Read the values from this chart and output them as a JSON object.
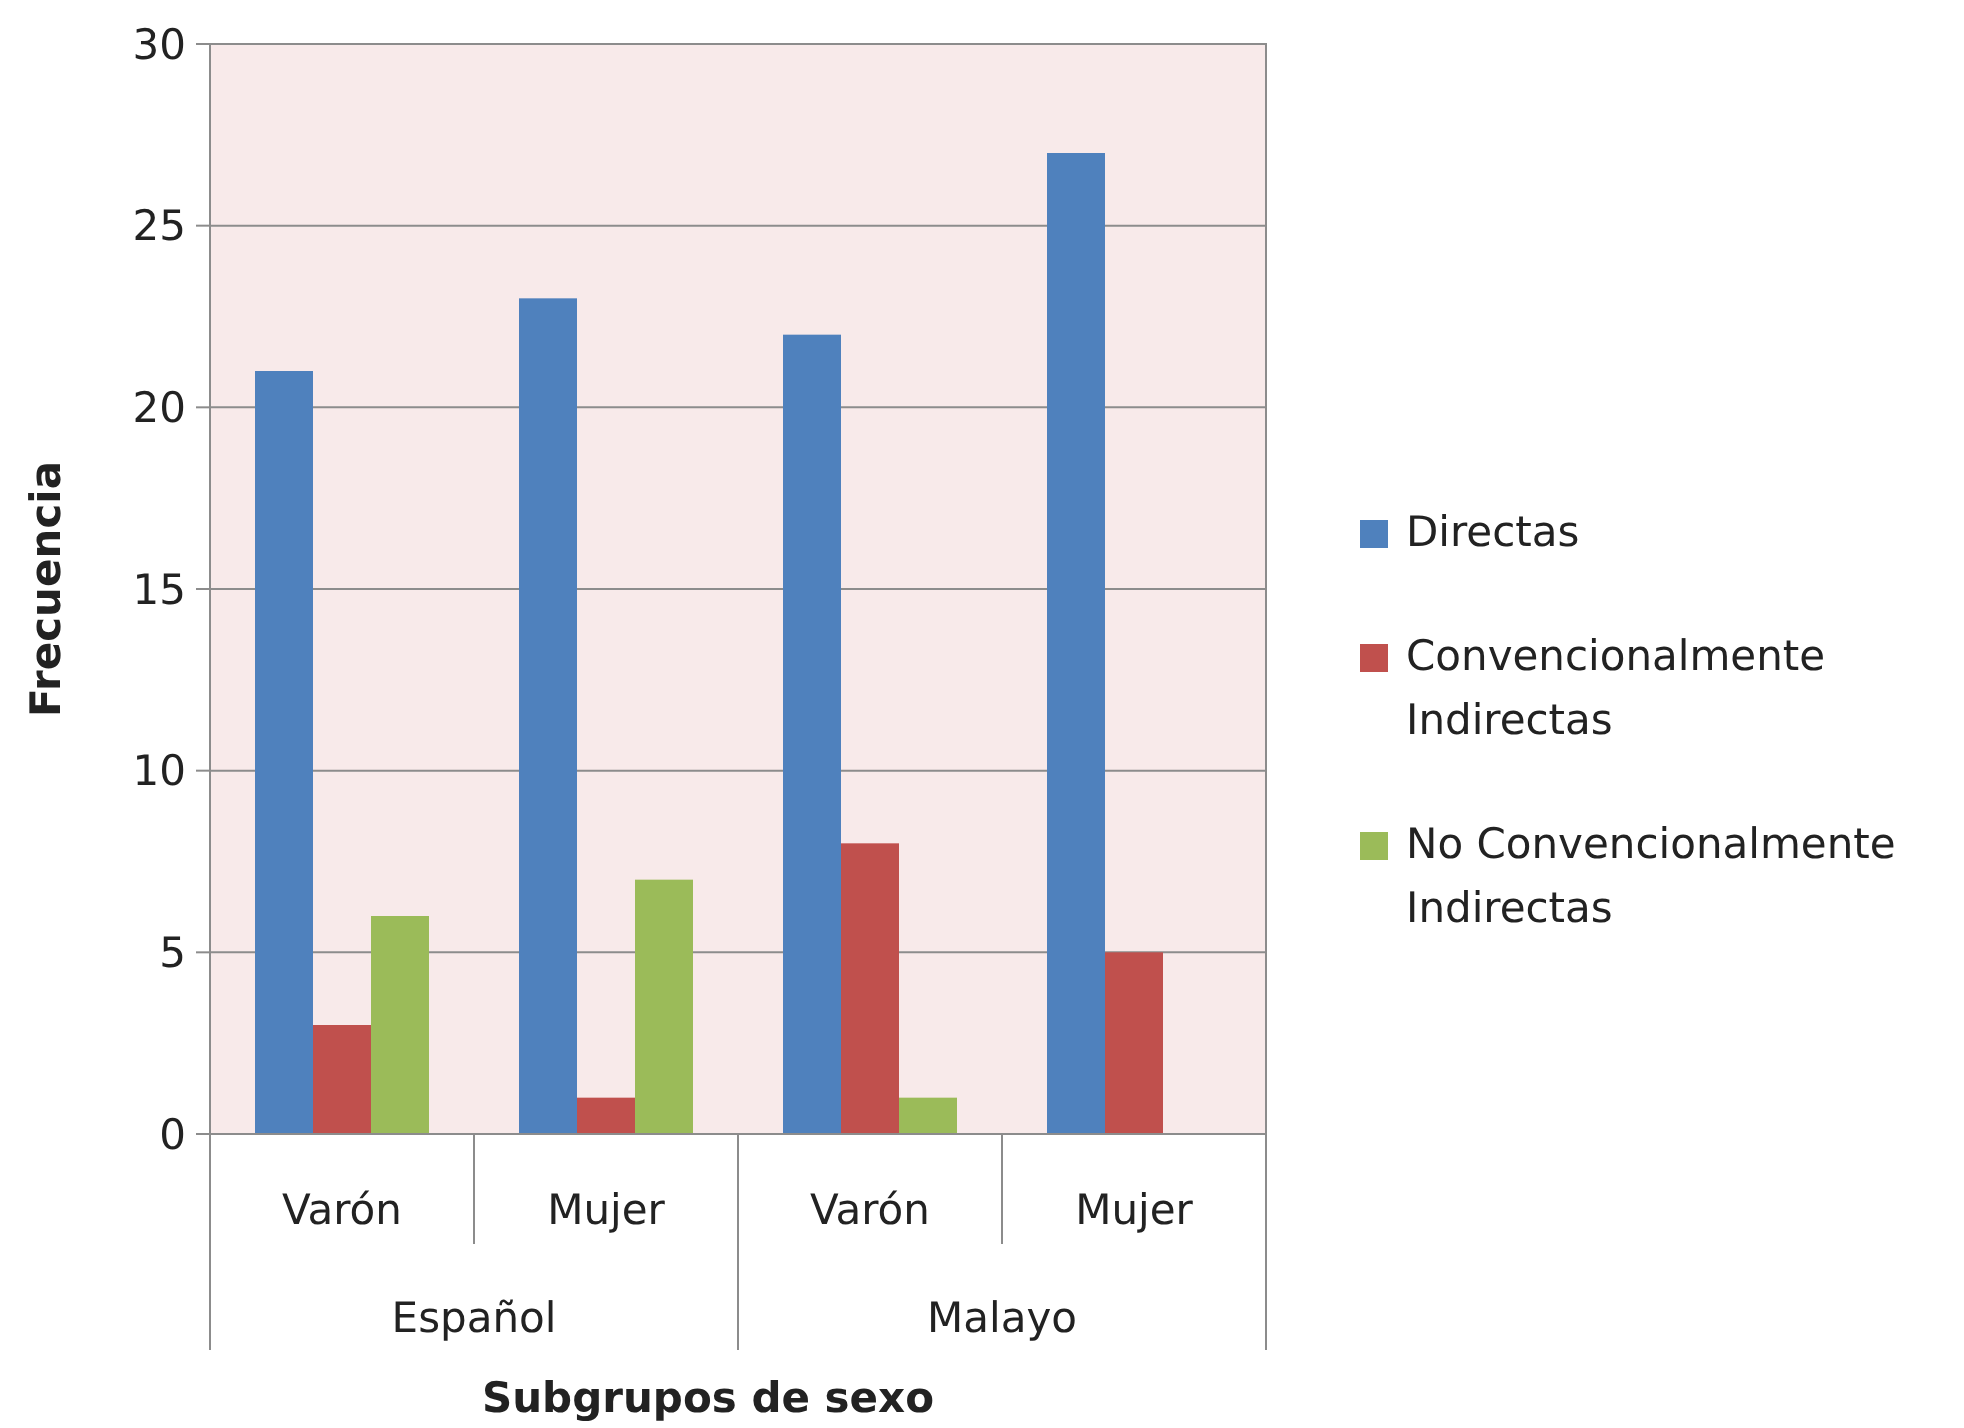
{
  "chart_data": {
    "type": "bar",
    "xlabel": "Subgrupos de sexo",
    "ylabel": "Frecuencia",
    "categories": [
      "Varón",
      "Mujer",
      "Varón",
      "Mujer"
    ],
    "annotations": [
      "Español",
      "Malayo"
    ],
    "series": [
      {
        "name": "Directas",
        "color": "#4f81bd",
        "values": [
          21,
          23,
          22,
          27
        ]
      },
      {
        "name": "Convencionalmente Indirectas",
        "color": "#c0504d",
        "values": [
          3,
          1,
          8,
          5
        ]
      },
      {
        "name": "No Convencionalmente Indirectas",
        "color": "#9bbb59",
        "values": [
          6,
          7,
          1,
          0
        ]
      }
    ],
    "ylim": [
      0,
      30
    ],
    "yticks": [
      0,
      5,
      10,
      15,
      20,
      25,
      30
    ],
    "grid": "y",
    "legend": "right"
  }
}
